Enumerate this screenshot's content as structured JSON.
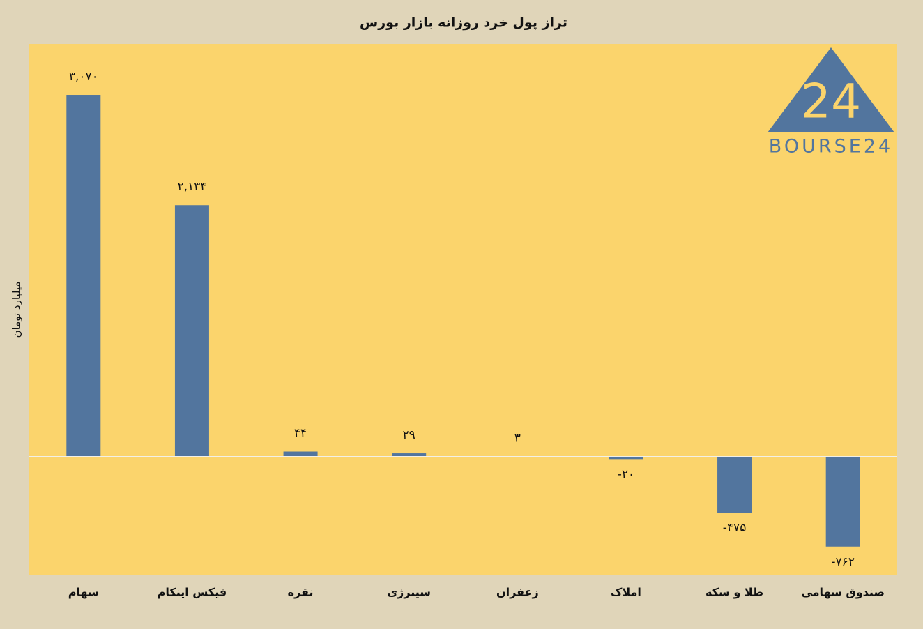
{
  "chart_data": {
    "type": "bar",
    "title": "تراز پول خرد روزانه بازار بورس",
    "y_label": "میلیارد تومان",
    "categories": [
      "سهام",
      "فیکس اینکام",
      "نقره",
      "سینرژی",
      "زعفران",
      "املاک",
      "طلا و سکه",
      "صندوق سهامی"
    ],
    "values": [
      3070,
      2134,
      44,
      29,
      3,
      -20,
      -475,
      -762
    ],
    "value_labels": [
      "۳,۰۷۰",
      "۲,۱۳۴",
      "۴۴",
      "۲۹",
      "۳",
      "-۲۰",
      "-۴۷۵",
      "-۷۶۲"
    ],
    "color": "#52759e",
    "ylim": [
      -1006,
      3502
    ],
    "logo_mark": "24",
    "logo": "BOURSE24"
  }
}
